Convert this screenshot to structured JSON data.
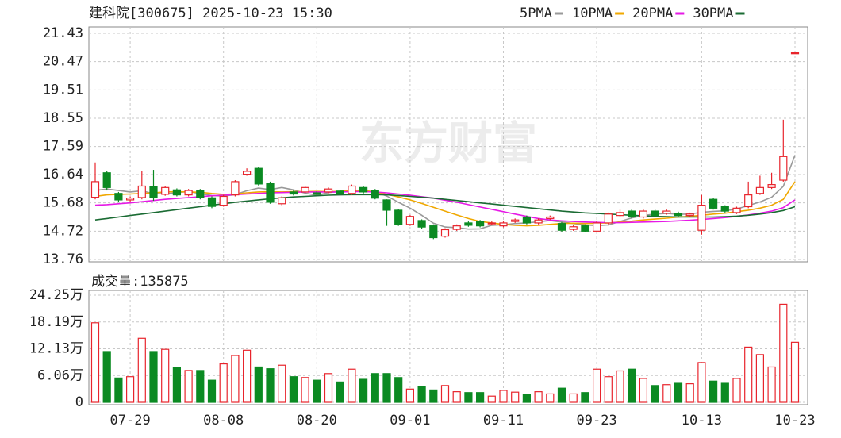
{
  "chart_data": {
    "type": "candlestick",
    "title": "建科院[300675] 2025-10-23 15:30",
    "watermark": "东方财富",
    "categories": [
      null,
      null,
      null,
      "07-29",
      null,
      null,
      null,
      null,
      null,
      null,
      null,
      "08-08",
      null,
      null,
      null,
      null,
      null,
      null,
      null,
      "08-20",
      null,
      null,
      null,
      null,
      null,
      null,
      null,
      "09-01",
      null,
      null,
      null,
      null,
      null,
      null,
      null,
      "09-11",
      null,
      null,
      null,
      null,
      null,
      null,
      null,
      "09-23",
      null,
      null,
      null,
      null,
      null,
      null,
      null,
      null,
      "10-13",
      null,
      null,
      null,
      null,
      null,
      null,
      null,
      "10-23"
    ],
    "open": [
      15.87,
      16.7,
      16.0,
      15.78,
      15.86,
      16.24,
      15.97,
      16.12,
      15.95,
      16.1,
      15.85,
      15.6,
      15.95,
      16.65,
      16.85,
      16.35,
      15.65,
      16.05,
      16.05,
      16.02,
      16.05,
      16.08,
      16.0,
      16.2,
      16.1,
      15.78,
      15.43,
      14.95,
      15.08,
      14.9,
      14.55,
      14.78,
      15.0,
      15.05,
      14.98,
      14.9,
      15.05,
      15.2,
      15.0,
      15.15,
      14.98,
      14.78,
      14.9,
      14.72,
      15.0,
      15.25,
      15.4,
      15.2,
      15.4,
      15.33,
      15.33,
      15.25,
      14.75,
      15.8,
      15.55,
      15.35,
      15.55,
      16.0,
      16.2,
      16.45,
      20.77
    ],
    "high": [
      17.05,
      16.75,
      16.05,
      15.9,
      16.75,
      16.8,
      16.25,
      16.17,
      16.15,
      16.15,
      15.9,
      15.95,
      16.45,
      16.85,
      16.9,
      16.4,
      15.9,
      16.1,
      16.25,
      16.07,
      16.2,
      16.12,
      16.3,
      16.25,
      16.15,
      15.8,
      15.48,
      15.27,
      15.12,
      14.95,
      14.82,
      14.95,
      15.05,
      15.1,
      15.05,
      15.05,
      15.15,
      15.25,
      15.15,
      15.25,
      15.03,
      14.92,
      14.95,
      15.05,
      15.35,
      15.45,
      15.45,
      15.45,
      15.45,
      15.45,
      15.38,
      15.35,
      15.95,
      15.85,
      15.6,
      15.55,
      16.4,
      16.6,
      16.7,
      18.5,
      20.77
    ],
    "low": [
      15.8,
      16.1,
      15.72,
      15.72,
      15.8,
      15.75,
      15.92,
      15.9,
      15.9,
      15.8,
      15.5,
      15.55,
      15.9,
      16.6,
      16.27,
      15.65,
      15.6,
      15.93,
      16.0,
      15.92,
      16.0,
      15.95,
      15.95,
      16.0,
      15.8,
      14.9,
      14.9,
      14.9,
      14.8,
      14.45,
      14.5,
      14.73,
      14.87,
      14.85,
      14.93,
      14.85,
      15.0,
      14.95,
      14.95,
      15.1,
      14.7,
      14.73,
      14.68,
      14.68,
      14.95,
      15.2,
      15.15,
      15.15,
      15.2,
      15.28,
      15.2,
      15.2,
      14.6,
      15.45,
      15.35,
      15.3,
      15.5,
      15.95,
      16.15,
      16.4,
      20.77
    ],
    "close": [
      16.4,
      16.2,
      15.78,
      15.84,
      16.25,
      15.86,
      16.2,
      15.95,
      16.1,
      15.86,
      15.56,
      15.9,
      16.4,
      16.75,
      16.32,
      15.7,
      15.85,
      15.98,
      16.2,
      15.97,
      16.15,
      16.0,
      16.25,
      16.05,
      15.84,
      15.43,
      14.95,
      15.22,
      14.86,
      14.5,
      14.77,
      14.9,
      14.92,
      14.9,
      15.0,
      15.0,
      15.1,
      15.0,
      15.1,
      15.2,
      14.75,
      14.87,
      14.72,
      15.0,
      15.3,
      15.35,
      15.2,
      15.4,
      15.25,
      15.4,
      15.25,
      15.3,
      15.6,
      15.5,
      15.4,
      15.5,
      15.95,
      16.2,
      16.3,
      17.25,
      20.77
    ],
    "up_color": "#e8242c",
    "down_color": "#0b8a22",
    "ylim": [
      13.76,
      21.43
    ],
    "yticks": [
      13.76,
      14.72,
      15.68,
      16.64,
      17.59,
      18.55,
      19.51,
      20.47,
      21.43
    ],
    "grid": true,
    "series": [
      {
        "name": "5PMA",
        "color": "#999999",
        "values": [
          16.1,
          16.15,
          16.1,
          16.05,
          16.09,
          15.99,
          15.99,
          16.02,
          16.07,
          15.99,
          15.93,
          15.91,
          15.96,
          16.09,
          16.18,
          16.13,
          16.2,
          16.12,
          16.01,
          15.94,
          16.03,
          16.07,
          16.11,
          16.08,
          16.06,
          15.91,
          15.7,
          15.5,
          15.26,
          14.99,
          14.86,
          14.84,
          14.79,
          14.8,
          14.92,
          14.94,
          14.98,
          15.0,
          15.04,
          15.08,
          15.03,
          14.98,
          14.93,
          14.91,
          14.93,
          15.05,
          15.17,
          15.25,
          15.3,
          15.32,
          15.29,
          15.3,
          15.36,
          15.39,
          15.41,
          15.47,
          15.59,
          15.71,
          15.87,
          16.24,
          17.3
        ]
      },
      {
        "name": "10PMA",
        "color": "#f0a800",
        "values": [
          15.9,
          15.95,
          15.97,
          15.98,
          16.0,
          16.02,
          16.05,
          16.06,
          16.05,
          16.04,
          16.0,
          15.97,
          15.98,
          16.02,
          16.05,
          16.06,
          16.05,
          16.06,
          16.06,
          16.07,
          16.06,
          16.07,
          16.1,
          16.1,
          16.05,
          15.97,
          15.88,
          15.78,
          15.66,
          15.53,
          15.4,
          15.27,
          15.15,
          15.05,
          15.0,
          14.95,
          14.92,
          14.9,
          14.92,
          14.95,
          14.98,
          14.99,
          14.98,
          14.99,
          15.0,
          15.03,
          15.06,
          15.1,
          15.13,
          15.16,
          15.2,
          15.22,
          15.26,
          15.3,
          15.33,
          15.38,
          15.43,
          15.5,
          15.6,
          15.8,
          16.4
        ]
      },
      {
        "name": "20PMA",
        "color": "#e619e6",
        "values": [
          15.6,
          15.62,
          15.65,
          15.68,
          15.72,
          15.76,
          15.8,
          15.83,
          15.86,
          15.89,
          15.92,
          15.94,
          15.96,
          15.98,
          16.0,
          16.02,
          16.03,
          16.04,
          16.05,
          16.05,
          16.05,
          16.05,
          16.06,
          16.06,
          16.05,
          16.02,
          15.98,
          15.94,
          15.89,
          15.84,
          15.77,
          15.7,
          15.62,
          15.54,
          15.46,
          15.38,
          15.3,
          15.22,
          15.15,
          15.1,
          15.07,
          15.05,
          15.03,
          15.02,
          15.01,
          15.01,
          15.02,
          15.03,
          15.04,
          15.05,
          15.07,
          15.09,
          15.12,
          15.15,
          15.18,
          15.22,
          15.27,
          15.33,
          15.4,
          15.52,
          15.78
        ]
      },
      {
        "name": "30PMA",
        "color": "#1a6b33",
        "values": [
          15.1,
          15.15,
          15.2,
          15.25,
          15.3,
          15.35,
          15.4,
          15.45,
          15.5,
          15.55,
          15.6,
          15.65,
          15.7,
          15.74,
          15.78,
          15.82,
          15.85,
          15.88,
          15.9,
          15.92,
          15.94,
          15.95,
          15.96,
          15.96,
          15.96,
          15.95,
          15.93,
          15.9,
          15.87,
          15.84,
          15.8,
          15.76,
          15.72,
          15.68,
          15.64,
          15.6,
          15.56,
          15.52,
          15.48,
          15.44,
          15.4,
          15.37,
          15.34,
          15.32,
          15.3,
          15.28,
          15.26,
          15.24,
          15.22,
          15.21,
          15.2,
          15.2,
          15.2,
          15.2,
          15.21,
          15.23,
          15.26,
          15.3,
          15.35,
          15.42,
          15.55
        ]
      }
    ],
    "volume": {
      "label": "成交量:",
      "values": [
        180000,
        115000,
        55000,
        58000,
        145000,
        115000,
        120000,
        78000,
        72000,
        72000,
        50000,
        87000,
        106000,
        118000,
        80000,
        76000,
        84000,
        58000,
        56000,
        50000,
        65000,
        46000,
        75000,
        52000,
        65000,
        65000,
        56000,
        30000,
        36000,
        28000,
        38000,
        24000,
        22000,
        22000,
        14000,
        27000,
        23000,
        18000,
        24000,
        19000,
        32000,
        19000,
        22000,
        75000,
        58000,
        71000,
        75000,
        54000,
        38000,
        40000,
        43000,
        42000,
        90000,
        48000,
        43000,
        54000,
        125000,
        108000,
        80000,
        222000,
        135875
      ],
      "ylim": [
        0,
        242500
      ],
      "yticks": [
        0,
        {
          "value": 60625,
          "label": "6.06万"
        },
        {
          "value": 121250,
          "label": "12.13万"
        },
        {
          "value": 181875,
          "label": "18.19万"
        },
        {
          "value": 242500,
          "label": "24.25万"
        }
      ]
    }
  }
}
